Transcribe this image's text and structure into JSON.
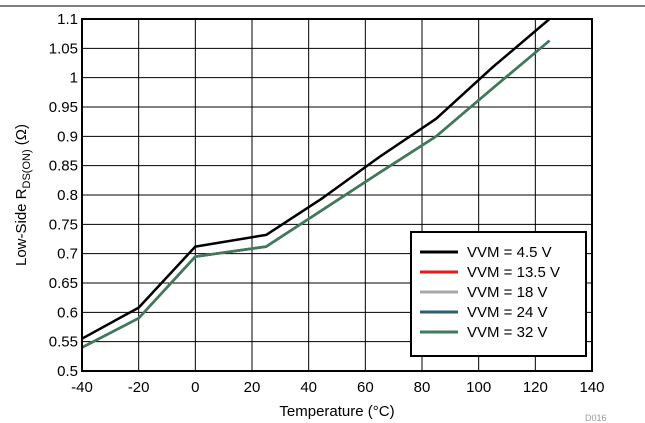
{
  "chart_data": {
    "type": "line",
    "title": "",
    "xlabel": "Temperature (°C)",
    "ylabel_main": "Low-Side R",
    "ylabel_sub": "DS(ON)",
    "ylabel_unit": " (Ω)",
    "xlim": [
      -40,
      140
    ],
    "ylim": [
      0.5,
      1.1
    ],
    "x_ticks": [
      "-40",
      "-20",
      "0",
      "20",
      "40",
      "60",
      "80",
      "100",
      "120",
      "140"
    ],
    "y_ticks": [
      "0.5",
      "0.55",
      "0.6",
      "0.65",
      "0.7",
      "0.75",
      "0.8",
      "0.85",
      "0.9",
      "0.95",
      "1",
      "1.05",
      "1.1"
    ],
    "grid": true,
    "legend_position": "bottom-right",
    "x": [
      -40,
      -20,
      0,
      25,
      45,
      65,
      85,
      105,
      125
    ],
    "series": [
      {
        "name": "VVM = 4.5 V",
        "color": "#000000",
        "values": [
          0.555,
          0.608,
          0.712,
          0.732,
          0.795,
          0.865,
          0.93,
          1.018,
          1.1
        ]
      },
      {
        "name": "VVM = 13.5 V",
        "color": "#e31a1c",
        "values": [
          0.54,
          0.59,
          0.695,
          0.712,
          0.775,
          0.838,
          0.9,
          0.982,
          1.063
        ]
      },
      {
        "name": "VVM = 18 V",
        "color": "#a8a8a8",
        "values": [
          0.54,
          0.59,
          0.695,
          0.712,
          0.775,
          0.838,
          0.9,
          0.982,
          1.063
        ]
      },
      {
        "name": "VVM = 24 V",
        "color": "#2e5c73",
        "values": [
          0.54,
          0.59,
          0.695,
          0.712,
          0.775,
          0.838,
          0.9,
          0.982,
          1.063
        ]
      },
      {
        "name": "VVM = 32 V",
        "color": "#3f7a5a",
        "values": [
          0.54,
          0.59,
          0.695,
          0.712,
          0.775,
          0.838,
          0.9,
          0.982,
          1.063
        ]
      }
    ],
    "note": "D016"
  }
}
